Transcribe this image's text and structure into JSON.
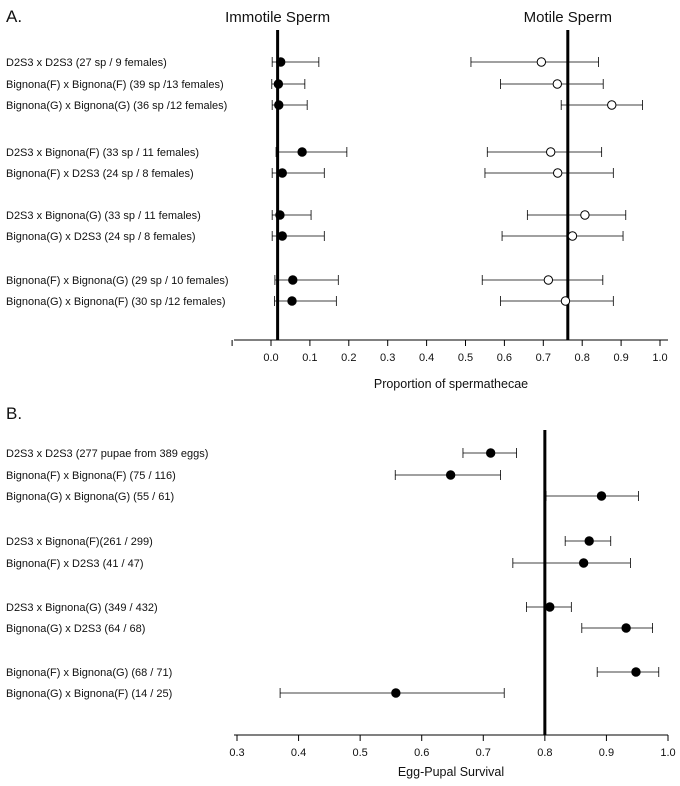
{
  "chart_data": [
    {
      "panel": "A.",
      "type": "scatter",
      "subtype": "dot-plot-with-error-bars",
      "xlabel": "Proportion of spermathecae",
      "xlim": [
        -0.1,
        1.0
      ],
      "xticks": [
        "0.0",
        "0.1",
        "0.2",
        "0.3",
        "0.4",
        "0.5",
        "0.6",
        "0.7",
        "0.8",
        "0.9",
        "1.0"
      ],
      "reference_lines": [
        {
          "value": 0.017,
          "label": "Immotile Sperm"
        },
        {
          "value": 0.763,
          "label": "Motile Sperm"
        }
      ],
      "series": [
        {
          "name": "Immotile Sperm",
          "marker": "filled-circle"
        },
        {
          "name": "Motile Sperm",
          "marker": "open-circle"
        }
      ],
      "rows": [
        {
          "label": "D2S3 x D2S3 (27 sp / 9 females)",
          "group": 0,
          "immotile": {
            "value": 0.025,
            "lo": 0.003,
            "hi": 0.123
          },
          "motile": {
            "value": 0.695,
            "lo": 0.514,
            "hi": 0.842
          }
        },
        {
          "label": "Bignona(F) x Bignona(F) (39 sp /13 females)",
          "group": 0,
          "immotile": {
            "value": 0.019,
            "lo": 0.002,
            "hi": 0.087
          },
          "motile": {
            "value": 0.736,
            "lo": 0.59,
            "hi": 0.854
          }
        },
        {
          "label": "Bignona(G) x Bignona(G) (36 sp /12 females)",
          "group": 0,
          "immotile": {
            "value": 0.02,
            "lo": 0.003,
            "hi": 0.093
          },
          "motile": {
            "value": 0.876,
            "lo": 0.746,
            "hi": 0.955
          }
        },
        {
          "label": "D2S3 x Bignona(F) (33 sp / 11 females)",
          "group": 1,
          "immotile": {
            "value": 0.08,
            "lo": 0.013,
            "hi": 0.195
          },
          "motile": {
            "value": 0.719,
            "lo": 0.556,
            "hi": 0.85
          }
        },
        {
          "label": "Bignona(F) x D2S3 (24 sp / 8 females)",
          "group": 1,
          "immotile": {
            "value": 0.029,
            "lo": 0.003,
            "hi": 0.137
          },
          "motile": {
            "value": 0.737,
            "lo": 0.55,
            "hi": 0.88
          }
        },
        {
          "label": "D2S3 x Bignona(G) (33 sp / 11 females)",
          "group": 2,
          "immotile": {
            "value": 0.023,
            "lo": 0.003,
            "hi": 0.103
          },
          "motile": {
            "value": 0.807,
            "lo": 0.659,
            "hi": 0.912
          }
        },
        {
          "label": "Bignona(G) x D2S3 (24 sp / 8 females)",
          "group": 2,
          "immotile": {
            "value": 0.029,
            "lo": 0.003,
            "hi": 0.137
          },
          "motile": {
            "value": 0.775,
            "lo": 0.594,
            "hi": 0.905
          }
        },
        {
          "label": "Bignona(F) x Bignona(G) (29 sp / 10 females)",
          "group": 3,
          "immotile": {
            "value": 0.056,
            "lo": 0.01,
            "hi": 0.173
          },
          "motile": {
            "value": 0.713,
            "lo": 0.543,
            "hi": 0.853
          }
        },
        {
          "label": "Bignona(G) x Bignona(F) (30 sp /12 females)",
          "group": 3,
          "immotile": {
            "value": 0.054,
            "lo": 0.009,
            "hi": 0.168
          },
          "motile": {
            "value": 0.757,
            "lo": 0.59,
            "hi": 0.88
          }
        }
      ]
    },
    {
      "panel": "B.",
      "type": "scatter",
      "subtype": "dot-plot-with-error-bars",
      "xlabel": "Egg-Pupal Survival",
      "xlim": [
        0.3,
        1.0
      ],
      "xticks": [
        "0.3",
        "0.4",
        "0.5",
        "0.6",
        "0.7",
        "0.8",
        "0.9",
        "1.0"
      ],
      "reference_lines": [
        {
          "value": 0.8,
          "label": ""
        }
      ],
      "rows": [
        {
          "label": "D2S3 x D2S3 (277 pupae from 389 eggs)",
          "group": 0,
          "value": 0.712,
          "lo": 0.667,
          "hi": 0.754
        },
        {
          "label": "Bignona(F) x Bignona(F) (75 / 116)",
          "group": 0,
          "value": 0.647,
          "lo": 0.557,
          "hi": 0.728
        },
        {
          "label": "Bignona(G) x Bignona(G) (55 / 61)",
          "group": 0,
          "value": 0.892,
          "lo": 0.802,
          "hi": 0.952
        },
        {
          "label": "D2S3 x Bignona(F)(261 / 299)",
          "group": 1,
          "value": 0.872,
          "lo": 0.833,
          "hi": 0.907
        },
        {
          "label": "Bignona(F) x D2S3 (41 / 47)",
          "group": 1,
          "value": 0.863,
          "lo": 0.748,
          "hi": 0.939
        },
        {
          "label": "D2S3 x Bignona(G) (349 / 432)",
          "group": 2,
          "value": 0.808,
          "lo": 0.77,
          "hi": 0.843
        },
        {
          "label": "Bignona(G) x D2S3 (64 / 68)",
          "group": 2,
          "value": 0.932,
          "lo": 0.86,
          "hi": 0.975
        },
        {
          "label": "Bignona(F) x Bignona(G) (68 / 71)",
          "group": 3,
          "value": 0.948,
          "lo": 0.885,
          "hi": 0.985
        },
        {
          "label": "Bignona(G) x Bignona(F) (14 / 25)",
          "group": 3,
          "value": 0.558,
          "lo": 0.37,
          "hi": 0.734
        }
      ]
    }
  ]
}
